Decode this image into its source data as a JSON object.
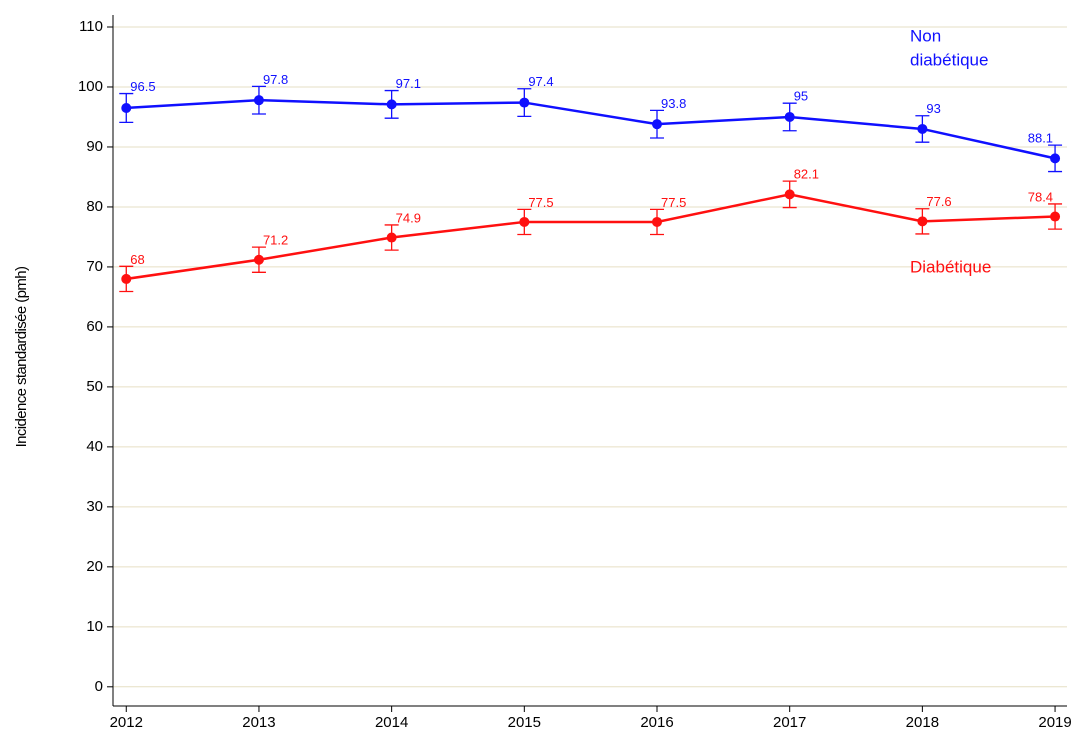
{
  "chart_data": {
    "type": "line",
    "y_label": "Incidence standardisée (pmh)",
    "x": [
      2012,
      2013,
      2014,
      2015,
      2016,
      2017,
      2018,
      2019
    ],
    "series": [
      {
        "name": "Non diabétique",
        "color": "#1010ff",
        "values": [
          96.5,
          97.8,
          97.1,
          97.4,
          93.8,
          95,
          93,
          88.1
        ],
        "errors": [
          2.4,
          2.3,
          2.3,
          2.3,
          2.3,
          2.3,
          2.2,
          2.2
        ]
      },
      {
        "name": "Diabétique",
        "color": "#ff1010",
        "values": [
          68,
          71.2,
          74.9,
          77.5,
          77.5,
          82.1,
          77.6,
          78.4
        ],
        "errors": [
          2.1,
          2.1,
          2.1,
          2.1,
          2.1,
          2.2,
          2.1,
          2.1
        ]
      }
    ],
    "annotations": [
      [
        "Non",
        "diabétique"
      ],
      [
        "Diabétique"
      ]
    ],
    "xlim": [
      2011.9,
      2019.09
    ],
    "xticks": [
      2012,
      2013,
      2014,
      2015,
      2016,
      2017,
      2018,
      2019
    ],
    "ylim": [
      -3.2,
      112
    ],
    "yticks": [
      0,
      10,
      20,
      30,
      40,
      50,
      60,
      70,
      80,
      90,
      100,
      110
    ],
    "grid": true
  }
}
